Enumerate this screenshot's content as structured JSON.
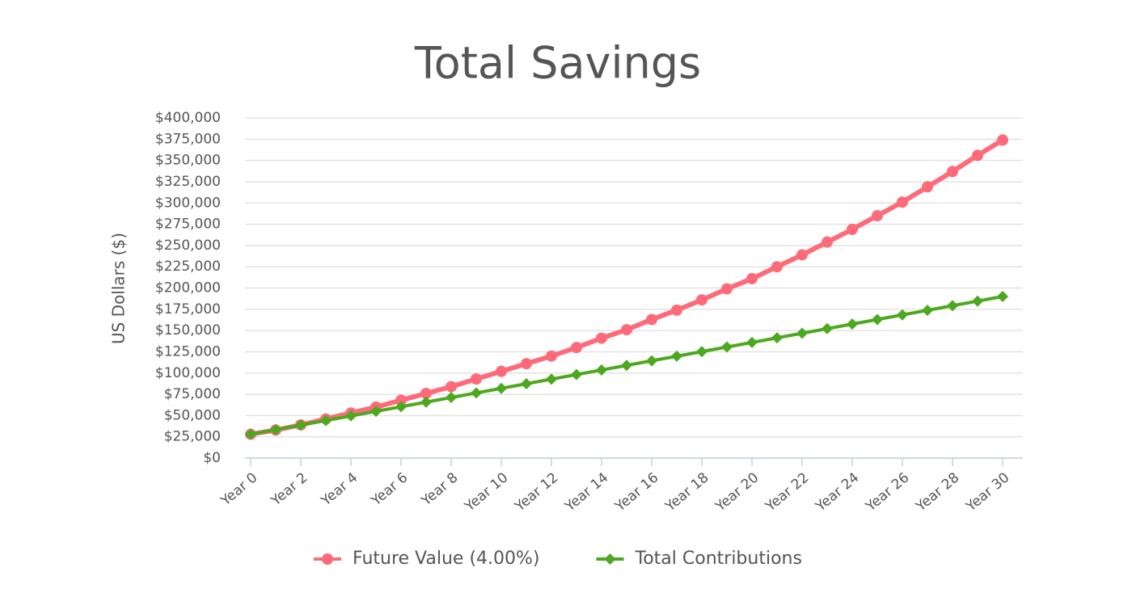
{
  "chart_data": {
    "type": "line",
    "title": "Total Savings",
    "y_label": "US Dollars ($)",
    "categories": [
      "Year 0",
      null,
      "Year 2",
      null,
      "Year 4",
      null,
      "Year 6",
      null,
      "Year 8",
      null,
      "Year 10",
      null,
      "Year 12",
      null,
      "Year 14",
      null,
      "Year 16",
      null,
      "Year 18",
      null,
      "Year 20",
      null,
      "Year 22",
      null,
      "Year 24",
      null,
      "Year 26",
      null,
      "Year 28",
      null,
      "Year 30"
    ],
    "series": [
      {
        "name": "Future Value (4.00%)",
        "color": "#fd6b7a",
        "marker": "circle",
        "values": [
          28000,
          33000,
          39000,
          46000,
          53000,
          60000,
          68000,
          76000,
          84000,
          93000,
          102000,
          111000,
          120000,
          130000,
          141000,
          151000,
          163000,
          174000,
          186000,
          199000,
          211000,
          225000,
          239000,
          254000,
          269000,
          285000,
          301000,
          319000,
          337000,
          356000,
          374000
        ]
      },
      {
        "name": "Total Contributions",
        "color": "#4ca81e",
        "marker": "diamond",
        "values": [
          28000,
          33400,
          38800,
          44200,
          49600,
          55000,
          60400,
          65800,
          71200,
          76600,
          82000,
          87400,
          92800,
          98200,
          103600,
          109000,
          114400,
          119800,
          125200,
          130600,
          136000,
          141400,
          146800,
          152200,
          157600,
          163000,
          168400,
          173800,
          179200,
          184600,
          190000
        ]
      }
    ],
    "ylim": [
      0,
      400000
    ],
    "yticks": [
      {
        "value": 0,
        "label": "$0"
      },
      {
        "value": 25000,
        "label": "$25,000"
      },
      {
        "value": 50000,
        "label": "$50,000"
      },
      {
        "value": 75000,
        "label": "$75,000"
      },
      {
        "value": 100000,
        "label": "$100,000"
      },
      {
        "value": 125000,
        "label": "$125,000"
      },
      {
        "value": 150000,
        "label": "$150,000"
      },
      {
        "value": 175000,
        "label": "$175,000"
      },
      {
        "value": 200000,
        "label": "$200,000"
      },
      {
        "value": 225000,
        "label": "$225,000"
      },
      {
        "value": 250000,
        "label": "$250,000"
      },
      {
        "value": 275000,
        "label": "$275,000"
      },
      {
        "value": 300000,
        "label": "$300,000"
      },
      {
        "value": 325000,
        "label": "$325,000"
      },
      {
        "value": 350000,
        "label": "$350,000"
      },
      {
        "value": 375000,
        "label": "$375,000"
      },
      {
        "value": 400000,
        "label": "$400,000"
      }
    ],
    "grid": true,
    "legend": "bottom"
  }
}
